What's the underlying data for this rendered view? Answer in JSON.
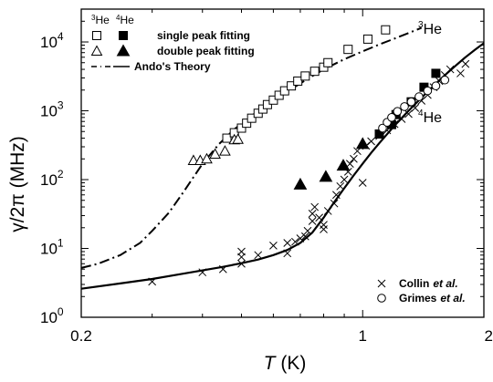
{
  "chart_data": {
    "type": "scatter",
    "x_scale": "log",
    "y_scale": "log",
    "xlim": [
      0.2,
      2
    ],
    "ylim": [
      1,
      30000
    ],
    "x_ticks": [
      {
        "value": 0.2,
        "label": "0.2"
      },
      {
        "value": 1,
        "label": "1"
      },
      {
        "value": 2,
        "label": "2"
      }
    ],
    "y_ticks": [
      {
        "value": 1,
        "base": "10",
        "exp": "0"
      },
      {
        "value": 10,
        "base": "10",
        "exp": "1"
      },
      {
        "value": 100,
        "base": "10",
        "exp": "2"
      },
      {
        "value": 1000,
        "base": "10",
        "exp": "3"
      },
      {
        "value": 10000,
        "base": "10",
        "exp": "4"
      }
    ],
    "xlabel": {
      "italic": "T",
      "rest": " (K)"
    },
    "ylabel": {
      "symbol": "γ/2π",
      "rest": " (MHz)"
    },
    "legend": {
      "header_he3": "3He",
      "header_he4": "4He",
      "single_peak": "single peak fitting",
      "double_peak": "double peak fitting",
      "theory": "Ando's Theory",
      "collin_name": "Collin",
      "collin_suffix": "et al.",
      "grimes_name": "Grimes",
      "grimes_suffix": "et al."
    },
    "curve_labels": {
      "he3": {
        "sup": "3",
        "text": "He"
      },
      "he4": {
        "sup": "4",
        "text": "He"
      }
    },
    "series": [
      {
        "name": "3He single peak fitting",
        "marker": "open-square",
        "points": [
          [
            0.46,
            400
          ],
          [
            0.48,
            480
          ],
          [
            0.5,
            560
          ],
          [
            0.515,
            660
          ],
          [
            0.53,
            780
          ],
          [
            0.55,
            920
          ],
          [
            0.565,
            1060
          ],
          [
            0.58,
            1230
          ],
          [
            0.6,
            1430
          ],
          [
            0.62,
            1680
          ],
          [
            0.64,
            1950
          ],
          [
            0.665,
            2300
          ],
          [
            0.69,
            2700
          ],
          [
            0.72,
            3200
          ],
          [
            0.76,
            3750
          ],
          [
            0.8,
            4300
          ],
          [
            0.82,
            5000
          ],
          [
            0.92,
            7800
          ],
          [
            1.03,
            11000
          ],
          [
            1.14,
            15000
          ]
        ]
      },
      {
        "name": "4He single peak fitting",
        "marker": "filled-square",
        "points": [
          [
            1.1,
            460
          ],
          [
            1.18,
            630
          ],
          [
            1.21,
            880
          ],
          [
            1.32,
            1350
          ],
          [
            1.42,
            2200
          ],
          [
            1.52,
            3500
          ]
        ]
      },
      {
        "name": "3He double peak fitting",
        "marker": "open-triangle",
        "points": [
          [
            0.38,
            190
          ],
          [
            0.395,
            190
          ],
          [
            0.41,
            200
          ],
          [
            0.43,
            235
          ],
          [
            0.455,
            260
          ],
          [
            0.48,
            380
          ],
          [
            0.49,
            385
          ]
        ]
      },
      {
        "name": "4He double peak fitting",
        "marker": "filled-triangle",
        "points": [
          [
            0.7,
            85
          ],
          [
            0.81,
            110
          ],
          [
            0.895,
            160
          ],
          [
            1.0,
            330
          ]
        ]
      },
      {
        "name": "Collin et al.",
        "marker": "cross",
        "points": [
          [
            0.3,
            3.3
          ],
          [
            0.4,
            4.5
          ],
          [
            0.45,
            5
          ],
          [
            0.5,
            6
          ],
          [
            0.5,
            7.5
          ],
          [
            0.5,
            9
          ],
          [
            0.55,
            8
          ],
          [
            0.6,
            11
          ],
          [
            0.65,
            12
          ],
          [
            0.65,
            8.5
          ],
          [
            0.68,
            12.5
          ],
          [
            0.7,
            14
          ],
          [
            0.72,
            15
          ],
          [
            0.73,
            18
          ],
          [
            0.75,
            25
          ],
          [
            0.75,
            32
          ],
          [
            0.76,
            40
          ],
          [
            0.78,
            28
          ],
          [
            0.8,
            19
          ],
          [
            0.8,
            22
          ],
          [
            0.82,
            35
          ],
          [
            0.85,
            45
          ],
          [
            0.86,
            60
          ],
          [
            0.88,
            80
          ],
          [
            0.9,
            100
          ],
          [
            0.92,
            130
          ],
          [
            0.93,
            170
          ],
          [
            0.95,
            200
          ],
          [
            0.97,
            260
          ],
          [
            1.0,
            90
          ],
          [
            1.02,
            310
          ],
          [
            1.05,
            360
          ],
          [
            1.1,
            430
          ],
          [
            1.15,
            520
          ],
          [
            1.2,
            640
          ],
          [
            1.25,
            760
          ],
          [
            1.3,
            900
          ],
          [
            1.35,
            1100
          ],
          [
            1.4,
            1400
          ],
          [
            1.45,
            1700
          ],
          [
            1.5,
            2200
          ],
          [
            1.55,
            2700
          ],
          [
            1.6,
            3300
          ],
          [
            1.65,
            4000
          ],
          [
            1.75,
            3500
          ],
          [
            1.8,
            4800
          ]
        ]
      },
      {
        "name": "Grimes et al.",
        "marker": "open-circle",
        "points": [
          [
            1.12,
            560
          ],
          [
            1.15,
            680
          ],
          [
            1.18,
            800
          ],
          [
            1.22,
            980
          ],
          [
            1.27,
            1150
          ],
          [
            1.32,
            1350
          ],
          [
            1.38,
            1600
          ],
          [
            1.45,
            1950
          ],
          [
            1.52,
            2300
          ],
          [
            1.6,
            2800
          ]
        ]
      },
      {
        "name": "Ando's Theory 3He",
        "marker": "dash-dot-line",
        "points": [
          [
            0.2,
            5.2
          ],
          [
            0.22,
            6.0
          ],
          [
            0.25,
            8.0
          ],
          [
            0.28,
            12
          ],
          [
            0.3,
            18
          ],
          [
            0.33,
            33
          ],
          [
            0.36,
            68
          ],
          [
            0.4,
            170
          ],
          [
            0.44,
            330
          ],
          [
            0.48,
            540
          ],
          [
            0.52,
            780
          ],
          [
            0.56,
            1070
          ],
          [
            0.6,
            1400
          ],
          [
            0.65,
            1900
          ],
          [
            0.7,
            2500
          ],
          [
            0.75,
            3200
          ],
          [
            0.8,
            4000
          ],
          [
            0.9,
            5600
          ],
          [
            1.0,
            7300
          ],
          [
            1.1,
            9200
          ],
          [
            1.2,
            11200
          ],
          [
            1.3,
            13500
          ],
          [
            1.4,
            16000
          ]
        ]
      },
      {
        "name": "Ando's Theory 4He",
        "marker": "solid-line",
        "points": [
          [
            0.2,
            2.6
          ],
          [
            0.25,
            3.1
          ],
          [
            0.3,
            3.6
          ],
          [
            0.35,
            4.2
          ],
          [
            0.4,
            4.8
          ],
          [
            0.45,
            5.4
          ],
          [
            0.5,
            6.1
          ],
          [
            0.55,
            6.9
          ],
          [
            0.6,
            8.0
          ],
          [
            0.65,
            9.5
          ],
          [
            0.7,
            12
          ],
          [
            0.75,
            17
          ],
          [
            0.8,
            28
          ],
          [
            0.85,
            47
          ],
          [
            0.9,
            75
          ],
          [
            0.95,
            115
          ],
          [
            1.0,
            170
          ],
          [
            1.05,
            245
          ],
          [
            1.1,
            340
          ],
          [
            1.2,
            610
          ],
          [
            1.3,
            1000
          ],
          [
            1.4,
            1550
          ],
          [
            1.5,
            2300
          ],
          [
            1.6,
            3300
          ],
          [
            1.7,
            4500
          ],
          [
            1.8,
            6000
          ],
          [
            1.9,
            7700
          ],
          [
            2.0,
            9600
          ]
        ]
      }
    ]
  }
}
